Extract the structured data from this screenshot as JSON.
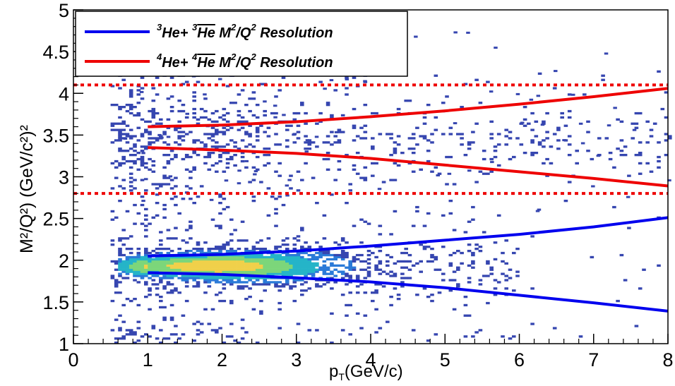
{
  "chart_data": {
    "type": "heatmap",
    "title": "",
    "xlabel": {
      "main": "p",
      "sub": "T",
      "rest": "(GeV/c)"
    },
    "ylabel": "M²/Q²) (GeV/c²)²",
    "xlim": [
      0,
      8
    ],
    "ylim": [
      1,
      5
    ],
    "x_ticks": [
      "0",
      "1",
      "2",
      "3",
      "4",
      "5",
      "6",
      "7",
      "8"
    ],
    "y_ticks": [
      "1",
      "1.5",
      "2",
      "2.5",
      "3",
      "3.5",
      "4",
      "4.5",
      "5"
    ],
    "grid": false,
    "legend_position": "top-left",
    "legend": [
      {
        "sup1": "3",
        "a": "He+ ",
        "sup2": "3",
        "b": "He",
        "c": " M",
        "sup3": "2",
        "d": "/Q",
        "sup4": "2",
        "e": " Resolution",
        "color": "#0000ee"
      },
      {
        "sup1": "4",
        "a": "He+ ",
        "sup2": "4",
        "b": "He",
        "c": " M",
        "sup3": "2",
        "d": "/Q",
        "sup4": "2",
        "e": " Resolution",
        "color": "#ee0000"
      }
    ],
    "cut_lines": {
      "values": [
        2.8,
        4.1
      ],
      "color": "#ee0000",
      "style": "dotted"
    },
    "series": [
      {
        "name": "3He upper",
        "color": "#0000ee",
        "x": [
          1,
          2,
          3,
          4,
          5,
          6,
          7,
          8
        ],
        "y": [
          2.05,
          2.07,
          2.11,
          2.17,
          2.24,
          2.31,
          2.4,
          2.51
        ]
      },
      {
        "name": "3He lower",
        "color": "#0000ee",
        "x": [
          1,
          2,
          3,
          4,
          5,
          6,
          7,
          8
        ],
        "y": [
          1.85,
          1.83,
          1.79,
          1.74,
          1.67,
          1.58,
          1.49,
          1.39
        ]
      },
      {
        "name": "4He upper",
        "color": "#ee0000",
        "x": [
          1,
          2,
          3,
          4,
          5,
          6,
          7,
          8
        ],
        "y": [
          3.6,
          3.62,
          3.66,
          3.72,
          3.79,
          3.87,
          3.96,
          4.06
        ]
      },
      {
        "name": "4He lower",
        "color": "#ee0000",
        "x": [
          1,
          2,
          3,
          4,
          5,
          6,
          7,
          8
        ],
        "y": [
          3.35,
          3.32,
          3.28,
          3.22,
          3.14,
          3.06,
          2.98,
          2.89
        ]
      }
    ],
    "density_description": {
      "band_center": 1.93,
      "band_x_range": [
        0.5,
        6.0
      ],
      "peak_x": 1.9,
      "colormap": [
        "#3646b0",
        "#2a7ad8",
        "#25b4c8",
        "#7cd67a",
        "#f0d04a"
      ]
    }
  }
}
